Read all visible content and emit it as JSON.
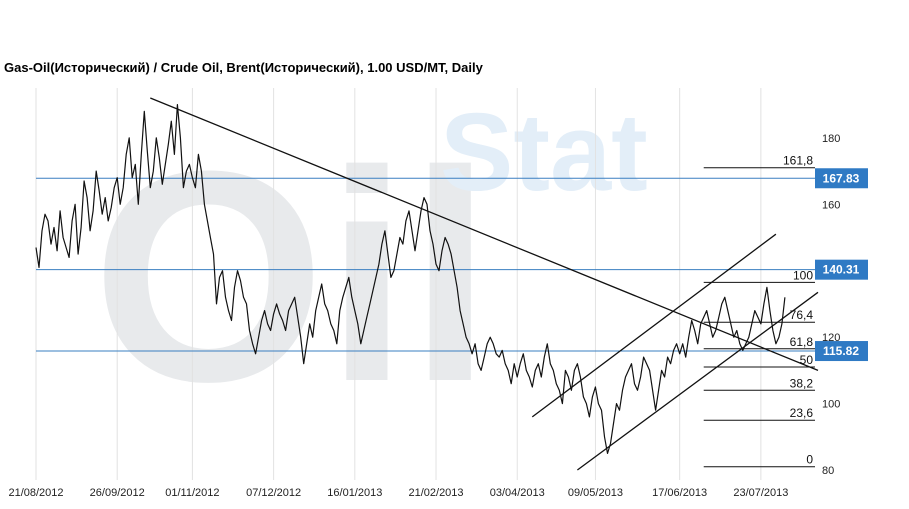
{
  "chart_data": {
    "type": "line",
    "title": "Gas-Oil(Исторический) / Crude Oil, Brent(Исторический), 1.00 USD/MT, Daily",
    "watermark": {
      "left": "Oil",
      "right": "Stat"
    },
    "y_ticks": [
      80,
      100,
      120,
      140,
      160,
      180
    ],
    "ylim": [
      77,
      195
    ],
    "x_ticks": [
      "21/08/2012",
      "26/09/2012",
      "01/11/2012",
      "07/12/2012",
      "16/01/2013",
      "21/02/2013",
      "03/04/2013",
      "09/05/2013",
      "17/06/2013",
      "23/07/2013"
    ],
    "x_tick_index": [
      0,
      27,
      52,
      79,
      106,
      133,
      160,
      186,
      214,
      241
    ],
    "x_count": 260,
    "price_lines": [
      {
        "value": 167.83,
        "label": "167.83"
      },
      {
        "value": 140.31,
        "label": "140.31"
      },
      {
        "value": 115.82,
        "label": "115.82"
      }
    ],
    "fibonacci": {
      "start_index": 222,
      "end_index": 259,
      "levels": [
        {
          "label": "161,8",
          "value": 171.0
        },
        {
          "label": "100",
          "value": 136.5
        },
        {
          "label": "76,4",
          "value": 124.5
        },
        {
          "label": "61,8",
          "value": 116.5
        },
        {
          "label": "50",
          "value": 111.0
        },
        {
          "label": "38,2",
          "value": 104.0
        },
        {
          "label": "23,6",
          "value": 95.0
        },
        {
          "label": "0",
          "value": 81.0
        }
      ]
    },
    "trendlines": [
      {
        "x1": 38,
        "y1": 192.0,
        "x2": 260,
        "y2": 110.0
      },
      {
        "x1": 165,
        "y1": 96.0,
        "x2": 246,
        "y2": 151.0
      },
      {
        "x1": 180,
        "y1": 80.0,
        "x2": 260,
        "y2": 133.5
      }
    ],
    "series": [
      {
        "values": [
          147,
          141,
          152,
          157,
          155,
          148,
          153,
          146,
          158,
          150,
          147,
          144,
          155,
          160,
          145,
          153,
          167,
          162,
          152,
          158,
          170,
          164,
          157,
          162,
          155,
          159,
          165,
          168,
          160,
          165,
          175,
          180,
          168,
          172,
          160,
          175,
          188,
          176,
          165,
          170,
          180,
          174,
          166,
          172,
          178,
          185,
          175,
          190,
          180,
          165,
          170,
          172,
          168,
          165,
          175,
          170,
          160,
          155,
          150,
          145,
          130,
          138,
          140,
          132,
          128,
          125,
          135,
          140,
          137,
          132,
          130,
          122,
          118,
          115,
          120,
          125,
          128,
          124,
          122,
          127,
          130,
          127,
          125,
          122,
          128,
          130,
          132,
          126,
          120,
          112,
          118,
          124,
          120,
          128,
          132,
          136,
          130,
          128,
          124,
          122,
          118,
          128,
          132,
          135,
          138,
          132,
          128,
          124,
          118,
          122,
          126,
          130,
          134,
          138,
          142,
          148,
          152,
          145,
          138,
          140,
          145,
          150,
          148,
          155,
          158,
          152,
          146,
          152,
          158,
          162,
          160,
          152,
          148,
          142,
          140,
          146,
          150,
          148,
          145,
          140,
          135,
          128,
          124,
          120,
          118,
          115,
          118,
          112,
          110,
          114,
          118,
          120,
          118,
          115,
          114,
          116,
          112,
          110,
          106,
          112,
          108,
          112,
          115,
          110,
          108,
          105,
          110,
          112,
          108,
          114,
          118,
          112,
          110,
          106,
          104,
          100,
          110,
          108,
          104,
          110,
          112,
          108,
          102,
          100,
          96,
          102,
          105,
          100,
          98,
          90,
          85,
          88,
          94,
          100,
          98,
          104,
          108,
          110,
          112,
          106,
          104,
          108,
          114,
          112,
          110,
          104,
          98,
          104,
          110,
          108,
          114,
          112,
          116,
          118,
          115,
          118,
          114,
          120,
          125,
          122,
          118,
          124,
          126,
          128,
          124,
          120,
          122,
          126,
          130,
          132,
          128,
          124,
          120,
          122,
          118,
          116,
          118,
          120,
          124,
          128,
          126,
          124,
          130,
          135,
          128,
          122,
          118,
          120,
          124,
          132
        ]
      }
    ]
  }
}
